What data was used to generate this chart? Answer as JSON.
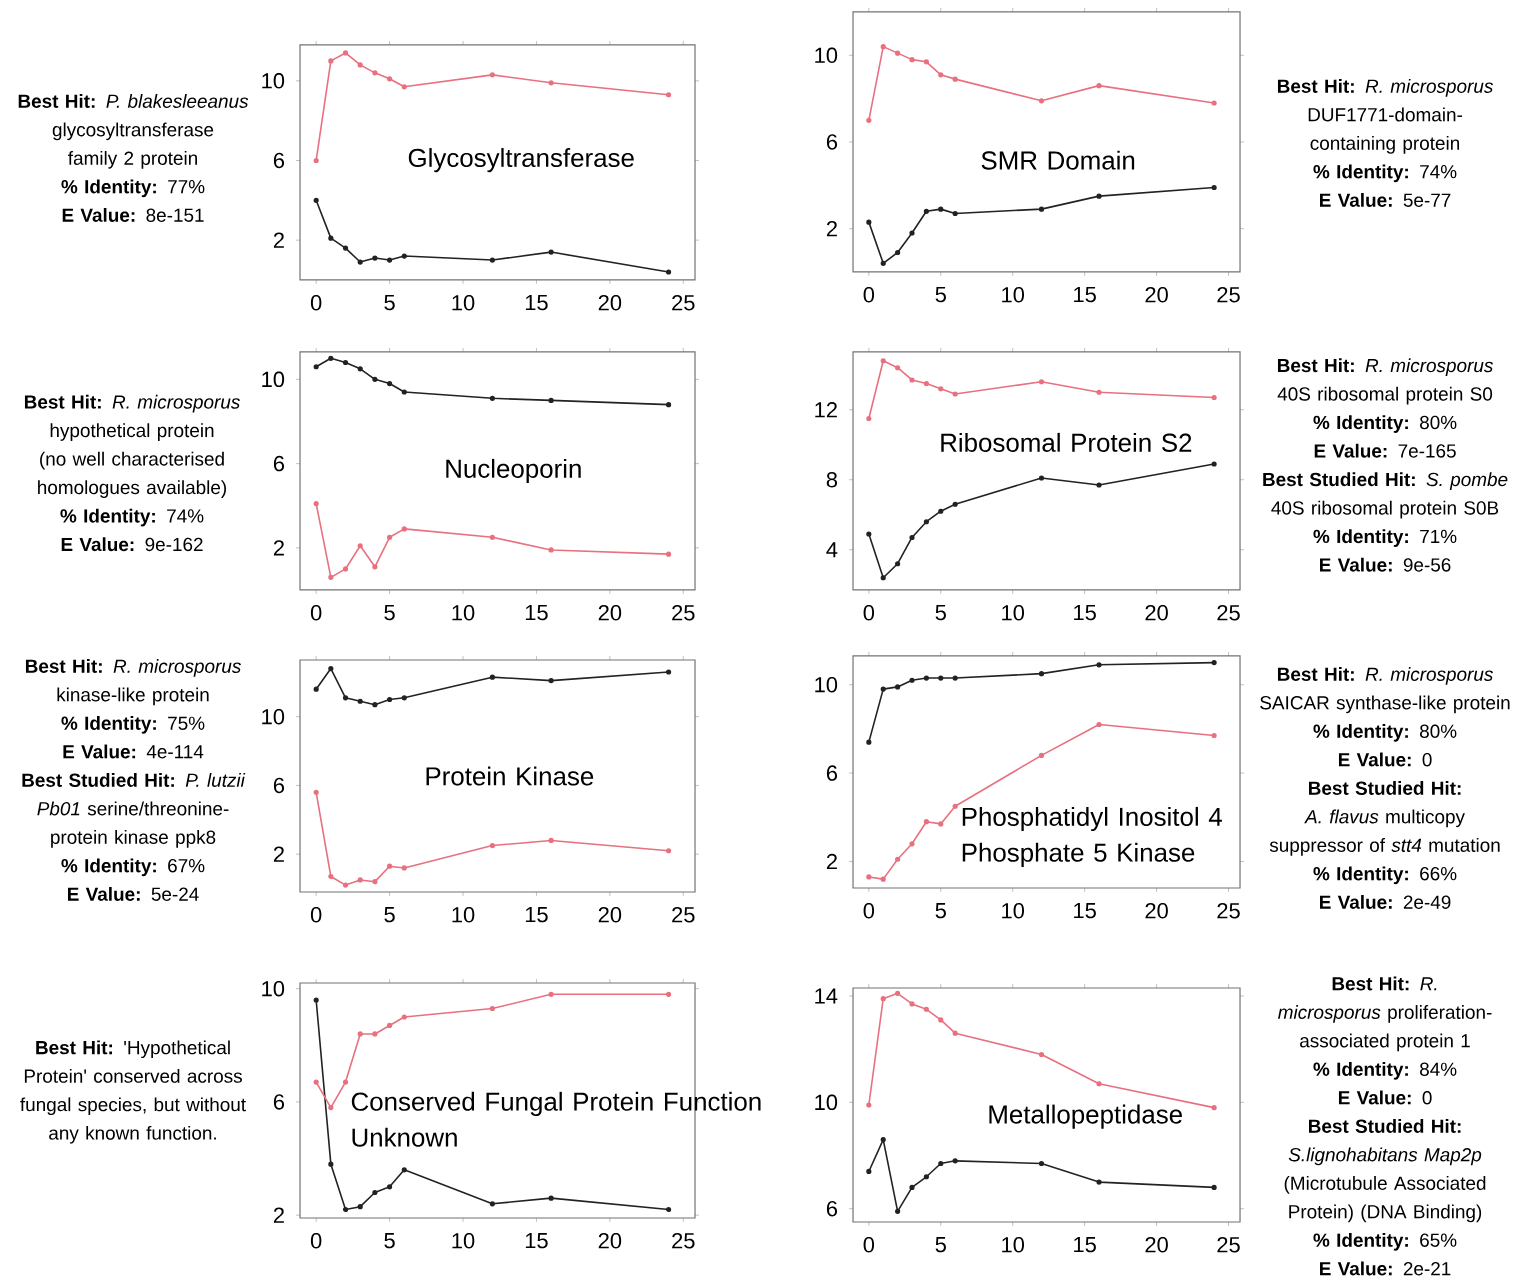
{
  "chart_data": [
    {
      "type": "line",
      "title": "Glycosyltransferase",
      "marker": "circle",
      "x": [
        0,
        1,
        2,
        3,
        4,
        5,
        6,
        12,
        16,
        24
      ],
      "xlim": [
        -1.1,
        25.8
      ],
      "ylim": [
        0,
        11.8
      ],
      "xticks": [
        0,
        5,
        10,
        15,
        20,
        25
      ],
      "yticks": [
        2,
        6,
        10
      ],
      "series": [
        {
          "color": "#e8707f",
          "values": [
            6.0,
            11.0,
            11.4,
            10.8,
            10.4,
            10.1,
            9.7,
            10.3,
            9.9,
            9.3
          ]
        },
        {
          "color": "#222222",
          "values": [
            4.0,
            2.1,
            1.6,
            0.9,
            1.1,
            1.0,
            1.2,
            1.0,
            1.4,
            0.4
          ]
        }
      ],
      "annotations": [
        "**Best Hit:** *P. blakesleeanus* glycosyltransferase family 2 protein",
        "**% Identity:** 77%",
        "**E Value:**  8e-151"
      ]
    },
    {
      "type": "line",
      "title": "SMR Domain",
      "marker": "circle",
      "x": [
        0,
        1,
        2,
        3,
        4,
        5,
        6,
        12,
        16,
        24
      ],
      "xlim": [
        -1.1,
        25.8
      ],
      "ylim": [
        0,
        12
      ],
      "xticks": [
        0,
        5,
        10,
        15,
        20,
        25
      ],
      "yticks": [
        2,
        6,
        10
      ],
      "series": [
        {
          "color": "#e8707f",
          "values": [
            7.0,
            10.4,
            10.1,
            9.8,
            9.7,
            9.1,
            8.9,
            7.9,
            8.6,
            7.8
          ]
        },
        {
          "color": "#222222",
          "values": [
            2.3,
            0.4,
            0.9,
            1.8,
            2.8,
            2.9,
            2.7,
            2.9,
            3.5,
            3.9
          ]
        }
      ],
      "annotations": [
        "**Best Hit:** *R. microsporus* DUF1771-domain-containing protein",
        "**% Identity:** 74%",
        "**E Value:**  5e-77"
      ]
    },
    {
      "type": "line",
      "title": "Nucleoporin",
      "marker": "circle",
      "x": [
        0,
        1,
        2,
        3,
        4,
        5,
        6,
        12,
        16,
        24
      ],
      "xlim": [
        -1.1,
        25.8
      ],
      "ylim": [
        0,
        11.3
      ],
      "xticks": [
        0,
        5,
        10,
        15,
        20,
        25
      ],
      "yticks": [
        2,
        6,
        10
      ],
      "series": [
        {
          "color": "#222222",
          "values": [
            10.6,
            11.0,
            10.8,
            10.5,
            10.0,
            9.8,
            9.4,
            9.1,
            9.0,
            8.8
          ]
        },
        {
          "color": "#e8707f",
          "values": [
            4.1,
            0.6,
            1.0,
            2.1,
            1.1,
            2.5,
            2.9,
            2.5,
            1.9,
            1.7
          ]
        }
      ],
      "annotations": [
        "**Best Hit:** *R. microsporus* hypothetical protein (no well characterised homologues available)",
        "**% Identity:** 74%",
        "**E Value:**  9e-162"
      ]
    },
    {
      "type": "line",
      "title": "Ribosomal Protein S2",
      "marker": "circle",
      "x": [
        0,
        1,
        2,
        3,
        4,
        5,
        6,
        12,
        16,
        24
      ],
      "xlim": [
        -1.1,
        25.8
      ],
      "ylim": [
        1.7,
        15.3
      ],
      "xticks": [
        0,
        5,
        10,
        15,
        20,
        25
      ],
      "yticks": [
        4,
        8,
        12
      ],
      "series": [
        {
          "color": "#e8707f",
          "values": [
            11.5,
            14.8,
            14.4,
            13.7,
            13.5,
            13.2,
            12.9,
            13.6,
            13.0,
            12.7
          ]
        },
        {
          "color": "#222222",
          "values": [
            4.9,
            2.4,
            3.2,
            4.7,
            5.6,
            6.2,
            6.6,
            8.1,
            7.7,
            8.9
          ]
        }
      ],
      "annotations": [
        "**Best Hit:** *R. microsporus* 40S ribosomal protein S0",
        "**% Identity:** 80%",
        "**E Value:**  7e-165",
        "**Best Studied Hit:** *S. pombe* 40S ribosomal protein S0B",
        "**% Identity:** 71%",
        "**E Value:**  9e-56"
      ]
    },
    {
      "type": "line",
      "title": "Protein Kinase",
      "marker": "circle",
      "x": [
        0,
        1,
        2,
        3,
        4,
        5,
        6,
        12,
        16,
        24
      ],
      "xlim": [
        -1.1,
        25.8
      ],
      "ylim": [
        -0.2,
        13.3
      ],
      "xticks": [
        0,
        5,
        10,
        15,
        20,
        25
      ],
      "yticks": [
        2,
        6,
        10
      ],
      "series": [
        {
          "color": "#222222",
          "values": [
            11.6,
            12.8,
            11.1,
            10.9,
            10.7,
            11.0,
            11.1,
            12.3,
            12.1,
            12.6
          ]
        },
        {
          "color": "#e8707f",
          "values": [
            5.6,
            0.7,
            0.2,
            0.5,
            0.4,
            1.3,
            1.2,
            2.5,
            2.8,
            2.2
          ]
        }
      ],
      "annotations": [
        "**Best Hit:** *R. microsporus* kinase-like protein",
        "**% Identity:** 75%",
        "**E Value:**  4e-114",
        "**Best Studied Hit:** *P. lutzii Pb01* serine/threonine-protein kinase ppk8",
        "**% Identity:** 67%",
        "**E Value:**  5e-24"
      ]
    },
    {
      "type": "line",
      "title": "Phosphatidyl Inositol 4 Phosphate 5 Kinase",
      "marker": "circle",
      "x": [
        0,
        1,
        2,
        3,
        4,
        5,
        6,
        12,
        16,
        24
      ],
      "xlim": [
        -1.1,
        25.8
      ],
      "ylim": [
        0.8,
        11.3
      ],
      "xticks": [
        0,
        5,
        10,
        15,
        20,
        25
      ],
      "yticks": [
        2,
        6,
        10
      ],
      "series": [
        {
          "color": "#222222",
          "values": [
            7.4,
            9.8,
            9.9,
            10.2,
            10.3,
            10.3,
            10.3,
            10.5,
            10.9,
            11.0
          ]
        },
        {
          "color": "#e8707f",
          "values": [
            1.3,
            1.2,
            2.1,
            2.8,
            3.8,
            3.7,
            4.5,
            6.8,
            8.2,
            7.7
          ]
        }
      ],
      "annotations": [
        "**Best Hit:** *R. microsporus* SAICAR synthase-like protein",
        "**% Identity:** 80%",
        "**E Value:**  0",
        "**Best Studied Hit:** *A. flavus* multicopy suppressor of *stt4* mutation",
        "**% Identity:** 66%",
        "**E Value:**  2e-49"
      ]
    },
    {
      "type": "line",
      "title": "Conserved Fungal Protein Function Unknown",
      "marker": "circle",
      "x": [
        0,
        1,
        2,
        3,
        4,
        5,
        6,
        12,
        16,
        24
      ],
      "xlim": [
        -1.1,
        25.8
      ],
      "ylim": [
        1.9,
        10.2
      ],
      "xticks": [
        0,
        5,
        10,
        15,
        20,
        25
      ],
      "yticks": [
        2,
        6,
        10
      ],
      "series": [
        {
          "color": "#222222",
          "values": [
            9.6,
            3.8,
            2.2,
            2.3,
            2.8,
            3.0,
            3.6,
            2.4,
            2.6,
            2.2
          ]
        },
        {
          "color": "#e8707f",
          "values": [
            6.7,
            5.8,
            6.7,
            8.4,
            8.4,
            8.7,
            9.0,
            9.3,
            9.8,
            9.8
          ]
        }
      ],
      "annotations": [
        "**Best Hit:** 'Hypothetical Protein' conserved across fungal species, but without any known function."
      ]
    },
    {
      "type": "line",
      "title": "Metallopeptidase",
      "marker": "circle",
      "x": [
        0,
        1,
        2,
        3,
        4,
        5,
        6,
        12,
        16,
        24
      ],
      "xlim": [
        -1.1,
        25.8
      ],
      "ylim": [
        5.5,
        14.3
      ],
      "xticks": [
        0,
        5,
        10,
        15,
        20,
        25
      ],
      "yticks": [
        6,
        10,
        14
      ],
      "series": [
        {
          "color": "#e8707f",
          "values": [
            9.9,
            13.9,
            14.1,
            13.7,
            13.5,
            13.1,
            12.6,
            11.8,
            10.7,
            9.8
          ]
        },
        {
          "color": "#222222",
          "values": [
            7.4,
            8.6,
            5.9,
            6.8,
            7.2,
            7.7,
            7.8,
            7.7,
            7.0,
            6.8
          ]
        }
      ],
      "annotations": [
        "**Best Hit:** *R. microsporus* proliferation-associated protein 1",
        "**% Identity:** 84%",
        "**E Value:**  0",
        "**Best Studied Hit:** *S.lignohabitans Map2p* (Microtubule Associated Protein) (DNA Binding)",
        "**% Identity:** 65%",
        "**E Value:**  2e-21"
      ]
    }
  ]
}
